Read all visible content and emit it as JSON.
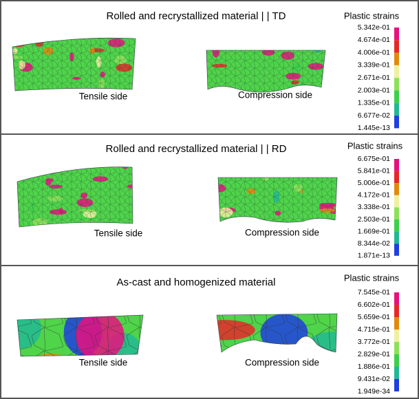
{
  "panels": [
    {
      "title": "Rolled and recrystallized material | | TD",
      "images": [
        {
          "caption": "Tensile side"
        },
        {
          "caption": "Compression side"
        }
      ],
      "legend": {
        "title": "Plastic strains",
        "labels": [
          "5.342e-01",
          "4.674e-01",
          "4.006e-01",
          "3.339e-01",
          "2.671e-01",
          "2.003e-01",
          "1.335e-01",
          "6.677e-02",
          "1.445e-13"
        ]
      }
    },
    {
      "title": "Rolled and recrystallized material | | RD",
      "images": [
        {
          "caption": "Tensile side"
        },
        {
          "caption": "Compression side"
        }
      ],
      "legend": {
        "title": "Plastic strains",
        "labels": [
          "6.675e-01",
          "5.841e-01",
          "5.006e-01",
          "4.172e-01",
          "3.338e-01",
          "2.503e-01",
          "1.669e-01",
          "8.344e-02",
          "1.871e-13"
        ]
      }
    },
    {
      "title": "As-cast and homogenized material",
      "images": [
        {
          "caption": "Tensile side"
        },
        {
          "caption": "Compression side"
        }
      ],
      "legend": {
        "title": "Plastic strains",
        "labels": [
          "7.545e-01",
          "6.602e-01",
          "5.659e-01",
          "4.715e-01",
          "3.772e-01",
          "2.829e-01",
          "1.886e-01",
          "9.431e-02",
          "1.949e-34"
        ]
      }
    }
  ]
}
